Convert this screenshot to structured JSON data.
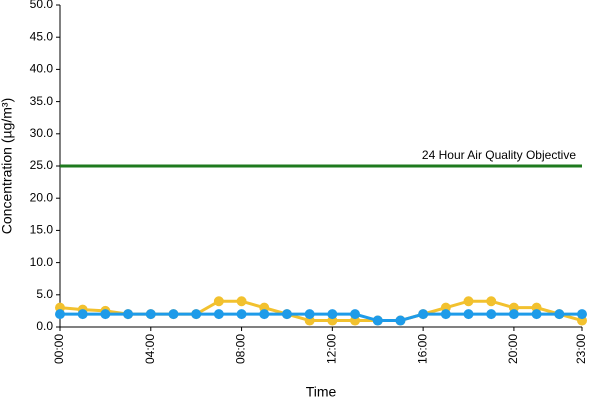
{
  "chart_data": {
    "type": "line",
    "xlabel": "Time",
    "ylabel": "Concentration (µg/m³)",
    "categories": [
      "00:00",
      null,
      null,
      null,
      "04:00",
      null,
      null,
      null,
      "08:00",
      null,
      null,
      null,
      "12:00",
      null,
      null,
      null,
      "16:00",
      null,
      null,
      null,
      "20:00",
      null,
      null,
      "23:00"
    ],
    "series": [
      {
        "color": "#f2c12e",
        "values": [
          3,
          2.7,
          2.5,
          2,
          2,
          2,
          2,
          4,
          4,
          3,
          2,
          1,
          1,
          1,
          1,
          1,
          2,
          3,
          4,
          4,
          3,
          3,
          2,
          1
        ]
      },
      {
        "color": "#1e9be9",
        "values": [
          2,
          2,
          2,
          2,
          2,
          2,
          2,
          2,
          2,
          2,
          2,
          2,
          2,
          2,
          1,
          1,
          2,
          2,
          2,
          2,
          2,
          2,
          2,
          2
        ]
      }
    ],
    "objective": {
      "label": "24 Hour Air Quality Objective",
      "value": 25,
      "color": "#1e7a1e"
    },
    "ylim": [
      0,
      50
    ],
    "yticks": [
      {
        "value": 0,
        "label": "0.0"
      },
      {
        "value": 5,
        "label": "5.0"
      },
      {
        "value": 10,
        "label": "10.0"
      },
      {
        "value": 15,
        "label": "15.0"
      },
      {
        "value": 20,
        "label": "20.0"
      },
      {
        "value": 25,
        "label": "25.0"
      },
      {
        "value": 30,
        "label": "30.0"
      },
      {
        "value": 35,
        "label": "35.0"
      },
      {
        "value": 40,
        "label": "40.0"
      },
      {
        "value": 45,
        "label": "45.0"
      },
      {
        "value": 50,
        "label": "50.0"
      }
    ],
    "grid": false
  }
}
